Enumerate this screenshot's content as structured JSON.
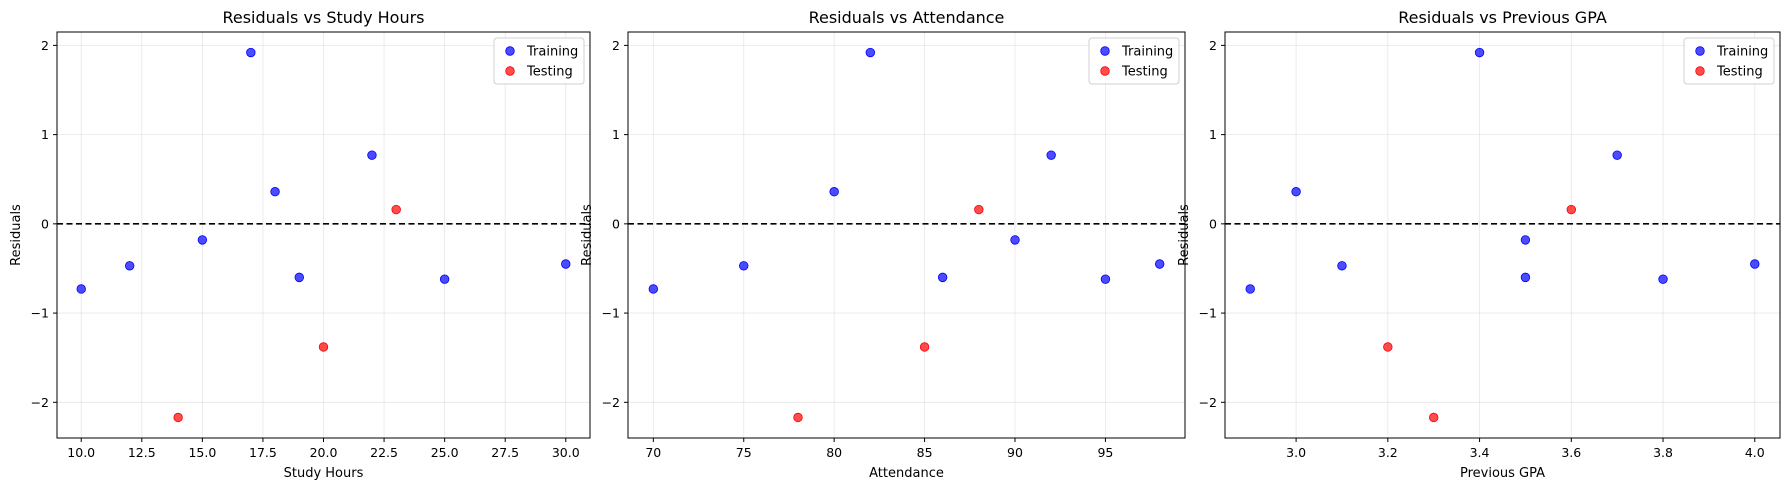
{
  "colors": {
    "training": "#0000ff",
    "testing": "#ff0000",
    "grid": "#b0b0b0"
  },
  "chart_data": [
    {
      "type": "scatter",
      "title": "Residuals vs Study Hours",
      "xlabel": "Study Hours",
      "ylabel": "Residuals",
      "xlim": [
        9,
        31
      ],
      "ylim": [
        -2.4,
        2.15
      ],
      "xticks": [
        10,
        12.5,
        15,
        17.5,
        20,
        22.5,
        25,
        27.5,
        30
      ],
      "xtick_labels": [
        "10.0",
        "12.5",
        "15.0",
        "17.5",
        "20.0",
        "22.5",
        "25.0",
        "27.5",
        "30.0"
      ],
      "yticks": [
        -2,
        -1,
        0,
        1,
        2
      ],
      "ytick_labels": [
        "−2",
        "−1",
        "0",
        "1",
        "2"
      ],
      "grid": true,
      "legend_position": "top-right",
      "reference_line": 0,
      "series": [
        {
          "name": "Training",
          "points": [
            [
              10,
              -0.73
            ],
            [
              12,
              -0.47
            ],
            [
              15,
              -0.18
            ],
            [
              17,
              1.92
            ],
            [
              18,
              0.36
            ],
            [
              19,
              -0.6
            ],
            [
              22,
              0.77
            ],
            [
              25,
              -0.62
            ],
            [
              30,
              -0.45
            ]
          ]
        },
        {
          "name": "Testing",
          "points": [
            [
              14,
              -2.17
            ],
            [
              20,
              -1.38
            ],
            [
              23,
              0.16
            ]
          ]
        }
      ]
    },
    {
      "type": "scatter",
      "title": "Residuals vs Attendance",
      "xlabel": "Attendance",
      "ylabel": "Residuals",
      "xlim": [
        68.6,
        99.4
      ],
      "ylim": [
        -2.4,
        2.15
      ],
      "xticks": [
        70,
        75,
        80,
        85,
        90,
        95
      ],
      "xtick_labels": [
        "70",
        "75",
        "80",
        "85",
        "90",
        "95"
      ],
      "yticks": [
        -2,
        -1,
        0,
        1,
        2
      ],
      "ytick_labels": [
        "−2",
        "−1",
        "0",
        "1",
        "2"
      ],
      "grid": true,
      "legend_position": "top-right",
      "reference_line": 0,
      "series": [
        {
          "name": "Training",
          "points": [
            [
              70,
              -0.73
            ],
            [
              75,
              -0.47
            ],
            [
              80,
              0.36
            ],
            [
              82,
              1.92
            ],
            [
              86,
              -0.6
            ],
            [
              90,
              -0.18
            ],
            [
              92,
              0.77
            ],
            [
              95,
              -0.62
            ],
            [
              98,
              -0.45
            ]
          ]
        },
        {
          "name": "Testing",
          "points": [
            [
              78,
              -2.17
            ],
            [
              85,
              -1.38
            ],
            [
              88,
              0.16
            ]
          ]
        }
      ]
    },
    {
      "type": "scatter",
      "title": "Residuals vs Previous GPA",
      "xlabel": "Previous GPA",
      "ylabel": "Residuals",
      "xlim": [
        2.845,
        4.055
      ],
      "ylim": [
        -2.4,
        2.15
      ],
      "xticks": [
        3.0,
        3.2,
        3.4,
        3.6,
        3.8,
        4.0
      ],
      "xtick_labels": [
        "3.0",
        "3.2",
        "3.4",
        "3.6",
        "3.8",
        "4.0"
      ],
      "yticks": [
        -2,
        -1,
        0,
        1,
        2
      ],
      "ytick_labels": [
        "−2",
        "−1",
        "0",
        "1",
        "2"
      ],
      "grid": true,
      "legend_position": "top-right",
      "reference_line": 0,
      "series": [
        {
          "name": "Training",
          "points": [
            [
              2.9,
              -0.73
            ],
            [
              3.0,
              0.36
            ],
            [
              3.1,
              -0.47
            ],
            [
              3.4,
              1.92
            ],
            [
              3.5,
              -0.18
            ],
            [
              3.5,
              -0.6
            ],
            [
              3.7,
              0.77
            ],
            [
              3.8,
              -0.62
            ],
            [
              4.0,
              -0.45
            ]
          ]
        },
        {
          "name": "Testing",
          "points": [
            [
              3.2,
              -1.38
            ],
            [
              3.3,
              -2.17
            ],
            [
              3.6,
              0.16
            ]
          ]
        }
      ]
    }
  ]
}
